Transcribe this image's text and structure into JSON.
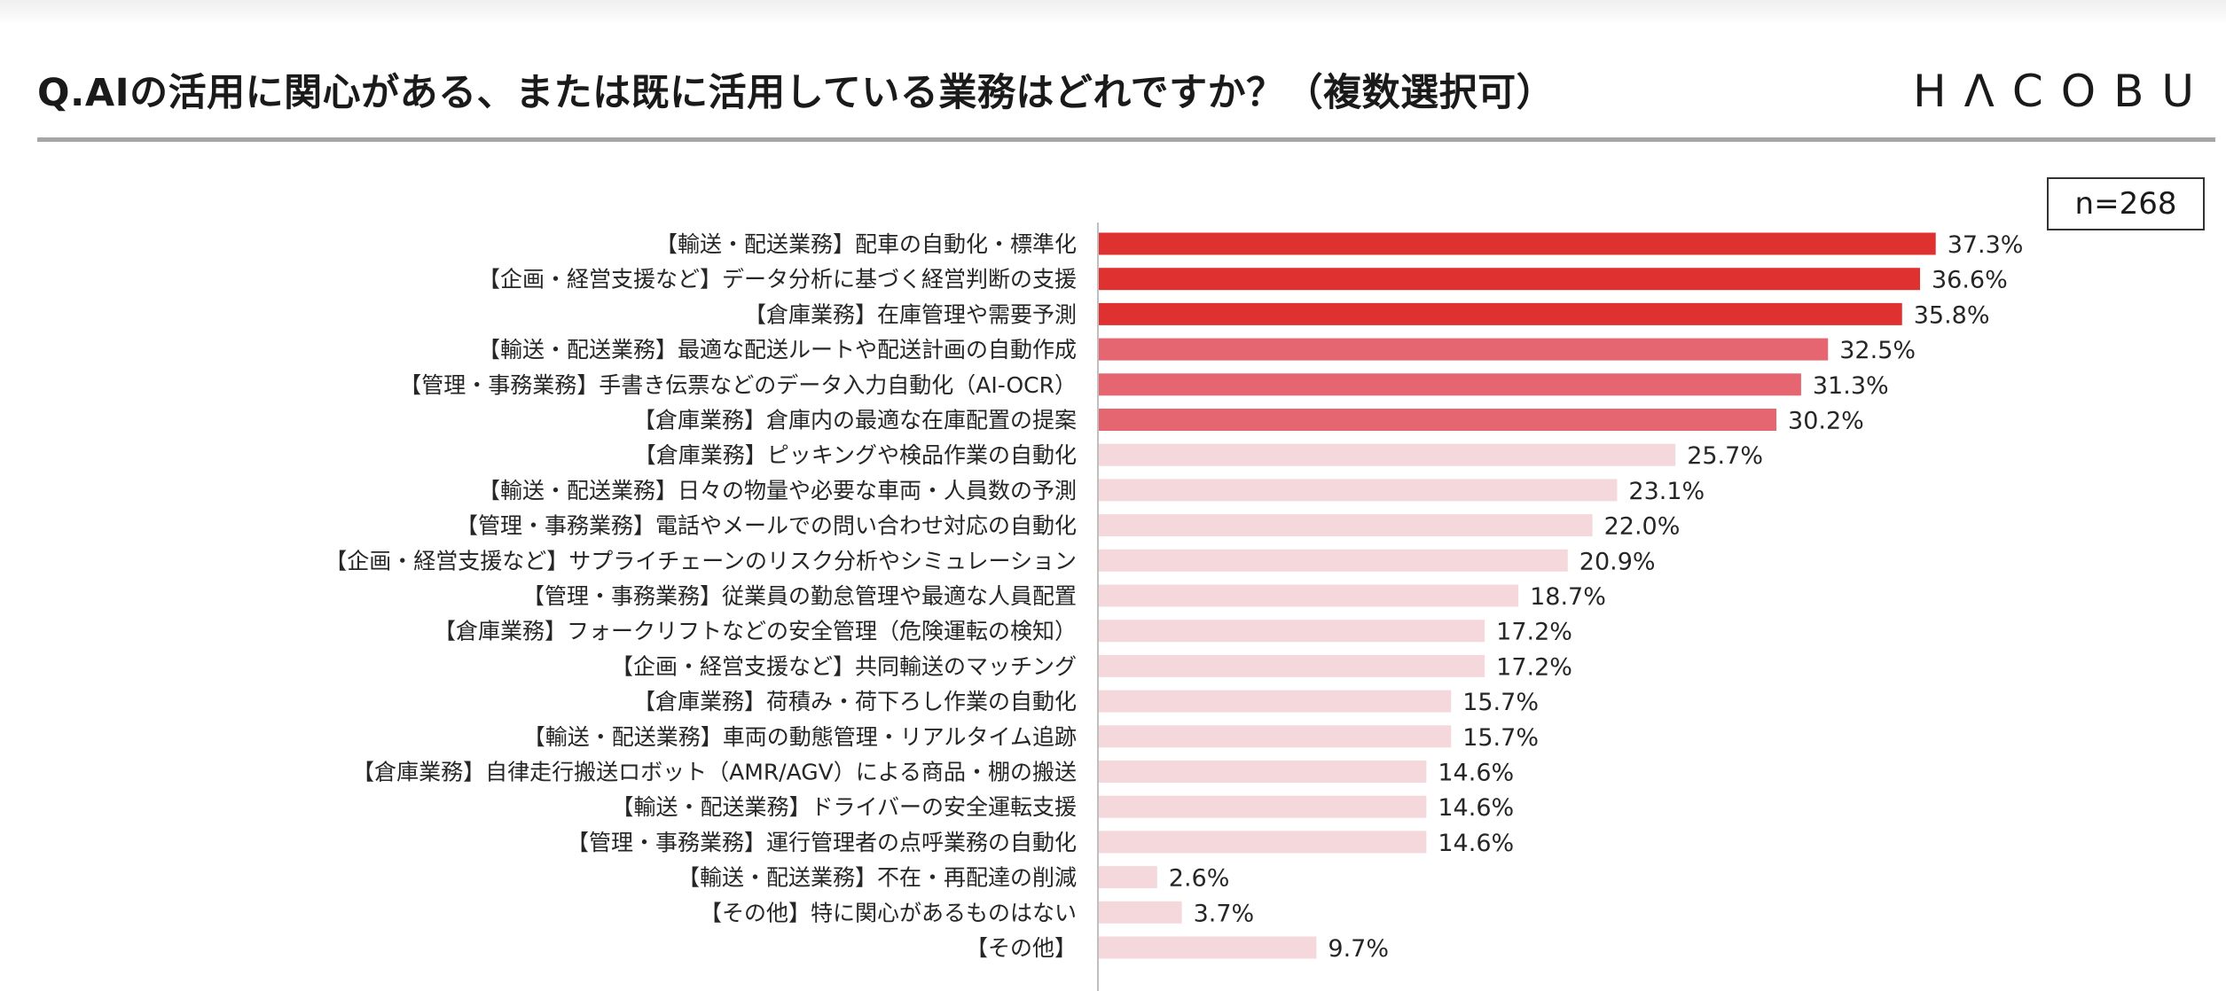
{
  "header": {
    "title": "Q.AIの活用に関心がある、または既に活用している業務はどれですか？（複数選択可）",
    "logo_text": "HΛCOBU",
    "sample_size": "n=268"
  },
  "chart_data": {
    "type": "bar",
    "orientation": "horizontal",
    "title": "Q.AIの活用に関心がある、または既に活用している業務はどれですか？（複数選択可）",
    "unit": "%",
    "xlim": [
      0,
      40
    ],
    "categories": [
      "【輸送・配送業務】配車の自動化・標準化",
      "【企画・経営支援など】データ分析に基づく経営判断の支援",
      "【倉庫業務】在庫管理や需要予測",
      "【輸送・配送業務】最適な配送ルートや配送計画の自動作成",
      "【管理・事務業務】手書き伝票などのデータ入力自動化（AI-OCR）",
      "【倉庫業務】倉庫内の最適な在庫配置の提案",
      "【倉庫業務】ピッキングや検品作業の自動化",
      "【輸送・配送業務】日々の物量や必要な車両・人員数の予測",
      "【管理・事務業務】電話やメールでの問い合わせ対応の自動化",
      "【企画・経営支援など】サプライチェーンのリスク分析やシミュレーション",
      "【管理・事務業務】従業員の勤怠管理や最適な人員配置",
      "【倉庫業務】フォークリフトなどの安全管理（危険運転の検知）",
      "【企画・経営支援など】共同輸送のマッチング",
      "【倉庫業務】荷積み・荷下ろし作業の自動化",
      "【輸送・配送業務】車両の動態管理・リアルタイム追跡",
      "【倉庫業務】自律走行搬送ロボット（AMR/AGV）による商品・棚の搬送",
      "【輸送・配送業務】ドライバーの安全運転支援",
      "【管理・事務業務】運行管理者の点呼業務の自動化",
      "【輸送・配送業務】不在・再配達の削減",
      "【その他】特に関心があるものはない",
      "【その他】"
    ],
    "values": [
      37.3,
      36.6,
      35.8,
      32.5,
      31.3,
      30.2,
      25.7,
      23.1,
      22.0,
      20.9,
      18.7,
      17.2,
      17.2,
      15.7,
      15.7,
      14.6,
      14.6,
      14.6,
      2.6,
      3.7,
      9.7
    ],
    "value_labels": [
      "37.3%",
      "36.6%",
      "35.8%",
      "32.5%",
      "31.3%",
      "30.2%",
      "25.7%",
      "23.1%",
      "22.0%",
      "20.9%",
      "18.7%",
      "17.2%",
      "17.2%",
      "15.7%",
      "15.7%",
      "14.6%",
      "14.6%",
      "14.6%",
      "2.6%",
      "3.7%",
      "9.7%"
    ],
    "tiers": [
      1,
      1,
      1,
      2,
      2,
      2,
      3,
      3,
      3,
      3,
      3,
      3,
      3,
      3,
      3,
      3,
      3,
      3,
      3,
      3,
      3
    ],
    "colors": {
      "tier1": "#e03131",
      "tier2": "#e56570",
      "tier3": "#f5d8dc",
      "axis": "#bfbfbf"
    }
  }
}
